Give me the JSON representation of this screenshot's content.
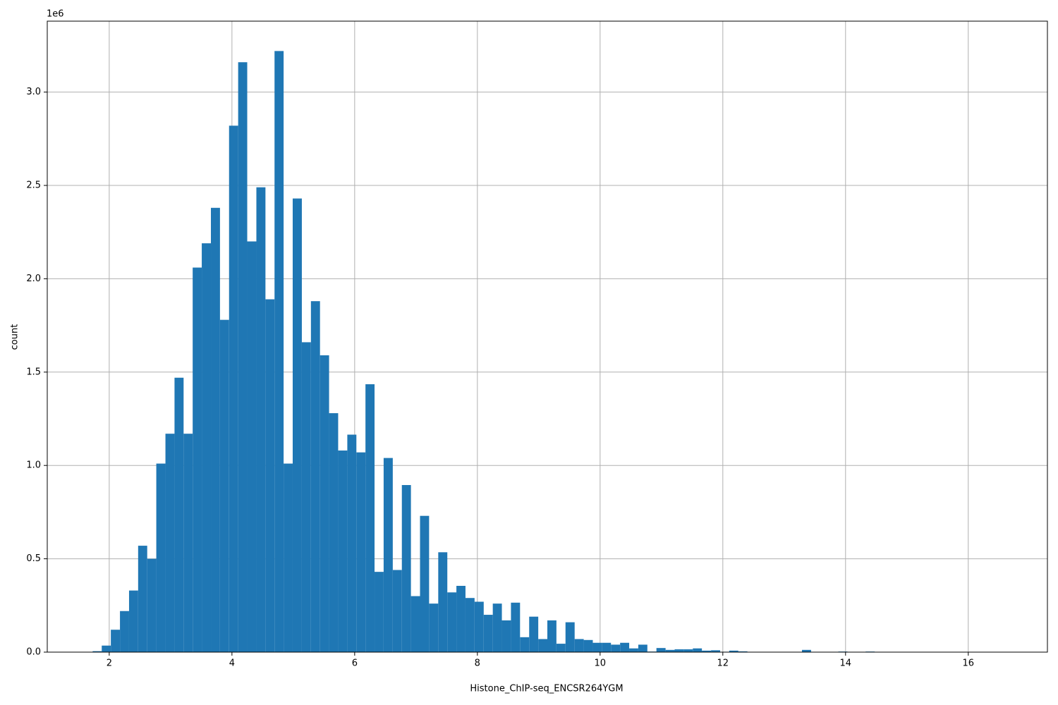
{
  "chart_data": {
    "type": "histogram",
    "xlabel": "Histone_ChIP-seq_ENCSR264YGM",
    "ylabel": "count",
    "y_offset_label": "1e6",
    "color": "#1f77b4",
    "grid": true,
    "xlim": [
      0.99,
      17.29
    ],
    "ylim": [
      0,
      3380000
    ],
    "xticks": [
      2,
      4,
      6,
      8,
      10,
      12,
      14,
      16
    ],
    "yticks": [
      {
        "value": 0,
        "label": "0.0"
      },
      {
        "value": 500000,
        "label": "0.5"
      },
      {
        "value": 1000000,
        "label": "1.0"
      },
      {
        "value": 1500000,
        "label": "1.5"
      },
      {
        "value": 2000000,
        "label": "2.0"
      },
      {
        "value": 2500000,
        "label": "2.5"
      },
      {
        "value": 3000000,
        "label": "3.0"
      }
    ],
    "bins": [
      1.73,
      1.878,
      2.026,
      2.175,
      2.323,
      2.471,
      2.619,
      2.767,
      2.916,
      3.064,
      3.212,
      3.36,
      3.508,
      3.657,
      3.805,
      3.953,
      4.101,
      4.249,
      4.398,
      4.546,
      4.694,
      4.842,
      4.99,
      5.139,
      5.287,
      5.435,
      5.583,
      5.731,
      5.88,
      6.028,
      6.176,
      6.324,
      6.472,
      6.621,
      6.769,
      6.917,
      7.065,
      7.213,
      7.362,
      7.51,
      7.658,
      7.806,
      7.954,
      8.103,
      8.251,
      8.399,
      8.547,
      8.695,
      8.844,
      8.992,
      9.14,
      9.288,
      9.436,
      9.585,
      9.733,
      9.881,
      10.029,
      10.177,
      10.326,
      10.474,
      10.622,
      10.77,
      10.918,
      11.067,
      11.215,
      11.363,
      11.511,
      11.659,
      11.808,
      11.956,
      12.104,
      12.252,
      12.4,
      12.549,
      12.697,
      12.845,
      12.993,
      13.141,
      13.29,
      13.438,
      13.586,
      13.734,
      13.882,
      14.031,
      14.179,
      14.327,
      14.475,
      14.623,
      14.772,
      14.92,
      15.068,
      15.216,
      15.364,
      15.513,
      15.661,
      15.809,
      15.957,
      16.105,
      16.254,
      16.402,
      16.55
    ],
    "counts": [
      5000,
      35000,
      120000,
      220000,
      330000,
      570000,
      500000,
      1010000,
      1170000,
      1470000,
      1170000,
      2060000,
      2190000,
      2380000,
      1780000,
      2820000,
      3160000,
      2200000,
      2490000,
      1890000,
      3220000,
      1010000,
      2430000,
      1660000,
      1880000,
      1590000,
      1280000,
      1080000,
      1165000,
      1070000,
      1435000,
      430000,
      1040000,
      440000,
      895000,
      300000,
      730000,
      260000,
      535000,
      320000,
      355000,
      290000,
      270000,
      200000,
      260000,
      170000,
      265000,
      80000,
      190000,
      70000,
      170000,
      45000,
      160000,
      70000,
      65000,
      50000,
      50000,
      40000,
      50000,
      20000,
      40000,
      3000,
      22000,
      12000,
      15000,
      15000,
      20000,
      8000,
      10000,
      2000,
      8000,
      4000,
      0,
      0,
      0,
      0,
      0,
      0,
      12000,
      0,
      0,
      0,
      3000,
      0,
      0,
      3000,
      0,
      0,
      0,
      0,
      0,
      0,
      0,
      0,
      0,
      0,
      0,
      0,
      0,
      0
    ]
  }
}
